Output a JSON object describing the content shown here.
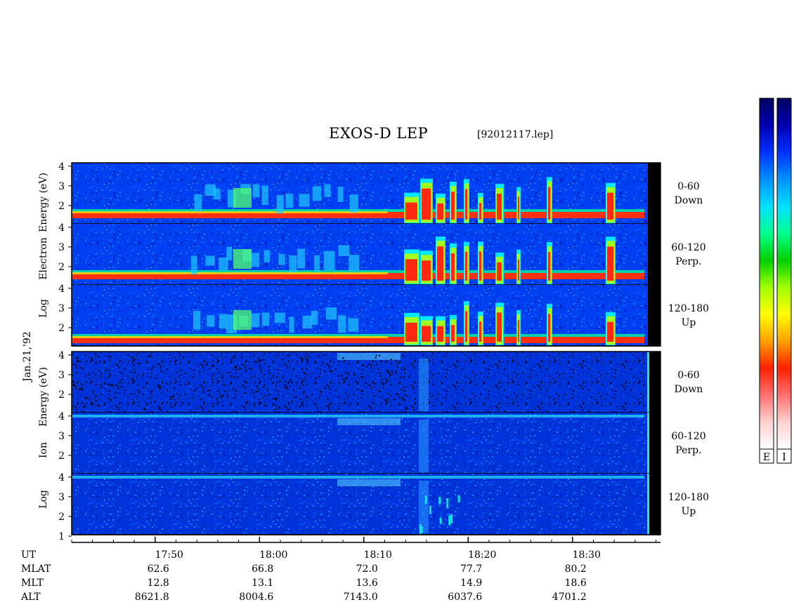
{
  "title": "EXOS-D LEP",
  "file_label": "[92012117.lep]",
  "colors": {
    "background": "#ffffff",
    "frame": "#000000",
    "colormap": [
      "#000060",
      "#0000b0",
      "#0030ff",
      "#0090ff",
      "#00e0ff",
      "#00ff90",
      "#00d000",
      "#a0ff00",
      "#ffff00",
      "#ffa000",
      "#ff2000",
      "#ff7070",
      "#ffd0d0",
      "#ffffff"
    ]
  },
  "chart_data": {
    "type": "heatmap",
    "date_label": "Jan.21,'92",
    "colorbars": [
      {
        "label": "E"
      },
      {
        "label": "I"
      }
    ],
    "groups": [
      {
        "name": "electron",
        "ylabel": "Log Electron Energy (eV)",
        "ylabel_words": [
          "Log",
          "Electron",
          "Energy (eV)"
        ],
        "panels": [
          {
            "angle": "0-60",
            "direction": "Down",
            "yticks": [
              "4",
              "3",
              "2"
            ],
            "ylim": [
              1,
              4.1
            ]
          },
          {
            "angle": "60-120",
            "direction": "Perp.",
            "yticks": [
              "4",
              "3",
              "2"
            ],
            "ylim": [
              1,
              4.1
            ]
          },
          {
            "angle": "120-180",
            "direction": "Up",
            "yticks": [
              "4",
              "3",
              "2"
            ],
            "ylim": [
              1,
              4.1
            ]
          }
        ]
      },
      {
        "name": "ion",
        "ylabel": "Log Ion Energy (eV)",
        "ylabel_words": [
          "Log",
          "Ion",
          "Energy (eV)"
        ],
        "panels": [
          {
            "angle": "0-60",
            "direction": "Down",
            "yticks": [
              "4",
              "3",
              "2"
            ],
            "ylim": [
              1,
              4.1
            ]
          },
          {
            "angle": "60-120",
            "direction": "Perp.",
            "yticks": [
              "4",
              "3",
              "2"
            ],
            "ylim": [
              1,
              4.1
            ]
          },
          {
            "angle": "120-180",
            "direction": "Up",
            "yticks": [
              "4",
              "3",
              "2",
              "1"
            ],
            "ylim": [
              1,
              4.1
            ]
          }
        ]
      }
    ],
    "x_axis": {
      "rows": [
        {
          "name": "UT",
          "values": [
            "17:50",
            "18:00",
            "18:10",
            "18:20",
            "18:30"
          ]
        },
        {
          "name": "MLAT",
          "values": [
            "62.6",
            "66.8",
            "72.0",
            "77.7",
            "80.2"
          ]
        },
        {
          "name": "MLT",
          "values": [
            "12.8",
            "13.1",
            "13.6",
            "14.9",
            "18.6"
          ]
        },
        {
          "name": "ALT",
          "values": [
            "8621.8",
            "8004.6",
            "7143.0",
            "6037.6",
            "4701.2"
          ]
        }
      ],
      "labeled_minutes": [
        50,
        60,
        70,
        80,
        90
      ],
      "xlim_minutes": [
        42,
        99
      ],
      "minor_tick_interval_minutes": 2
    }
  }
}
